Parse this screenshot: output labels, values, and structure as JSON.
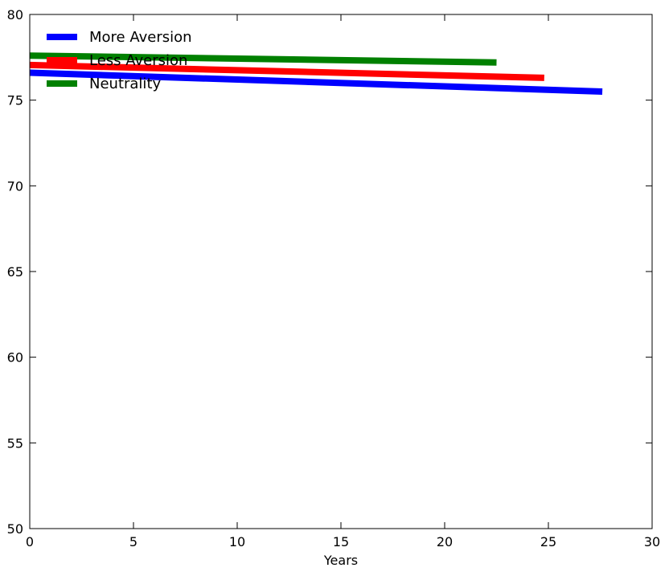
{
  "chart_data": {
    "type": "line",
    "title": "",
    "xlabel": "Years",
    "ylabel": "",
    "xlim": [
      0,
      30
    ],
    "ylim": [
      50,
      80
    ],
    "xticks": [
      0,
      5,
      10,
      15,
      20,
      25,
      30
    ],
    "yticks": [
      50,
      55,
      60,
      65,
      70,
      75,
      80
    ],
    "grid": false,
    "legend": "top-left",
    "series": [
      {
        "name": "More Aversion",
        "color": "#0000ff",
        "x": [
          0,
          27.6
        ],
        "y": [
          76.6,
          75.5
        ]
      },
      {
        "name": "Less Aversion",
        "color": "#ff0000",
        "x": [
          0,
          24.8
        ],
        "y": [
          77.05,
          76.3
        ]
      },
      {
        "name": "Neutrality",
        "color": "#008000",
        "x": [
          0,
          22.5
        ],
        "y": [
          77.6,
          77.2
        ]
      }
    ]
  }
}
